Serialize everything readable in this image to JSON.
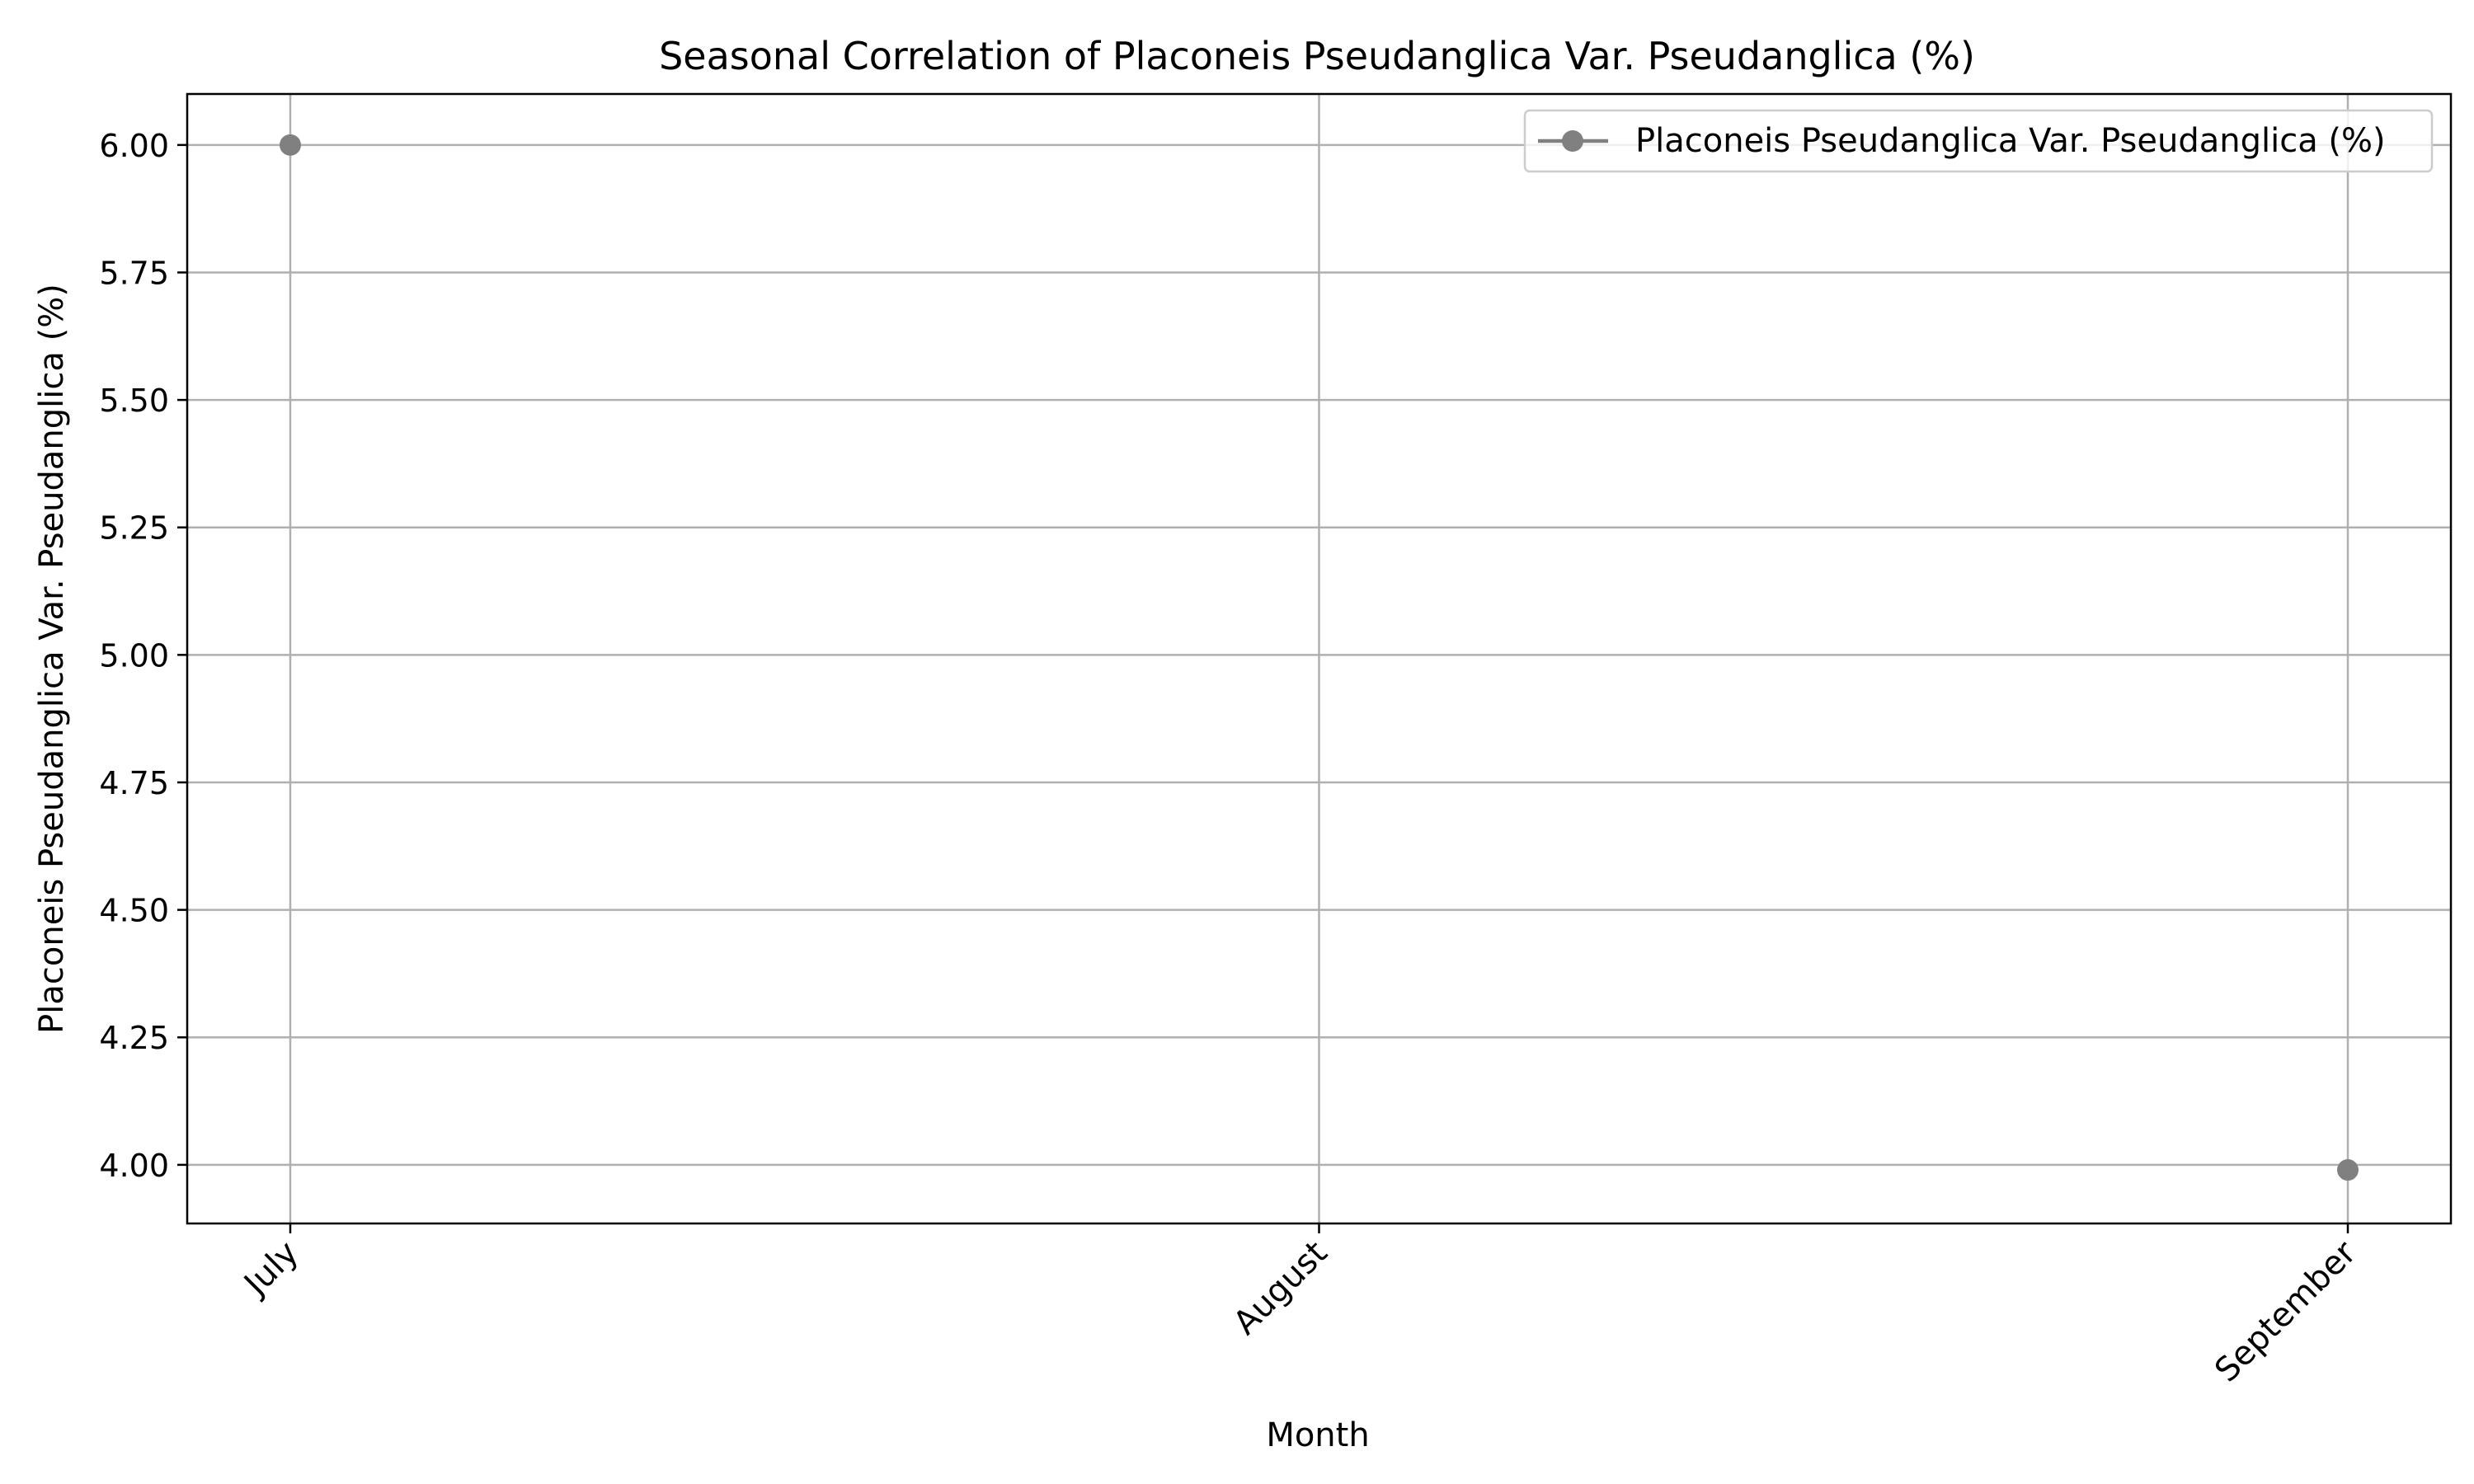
{
  "chart_data": {
    "type": "scatter",
    "title": "Seasonal Correlation of Placoneis Pseudanglica Var. Pseudanglica (%)",
    "xlabel": "Month",
    "ylabel": "Placoneis Pseudanglica Var. Pseudanglica (%)",
    "categories": [
      "July",
      "August",
      "September"
    ],
    "series": [
      {
        "name": "Placoneis Pseudanglica Var. Pseudanglica (%)",
        "values": [
          6.0,
          null,
          3.99
        ],
        "color": "#808080",
        "marker": "circle"
      }
    ],
    "ylim": [
      3.885,
      6.1
    ],
    "yticks": [
      4.0,
      4.25,
      4.5,
      4.75,
      5.0,
      5.25,
      5.5,
      5.75,
      6.0
    ],
    "ytick_labels": [
      "4.00",
      "4.25",
      "4.50",
      "4.75",
      "5.00",
      "5.25",
      "5.50",
      "5.75",
      "6.00"
    ],
    "grid": true,
    "legend_position": "top-right",
    "xtick_rotation": 45
  }
}
